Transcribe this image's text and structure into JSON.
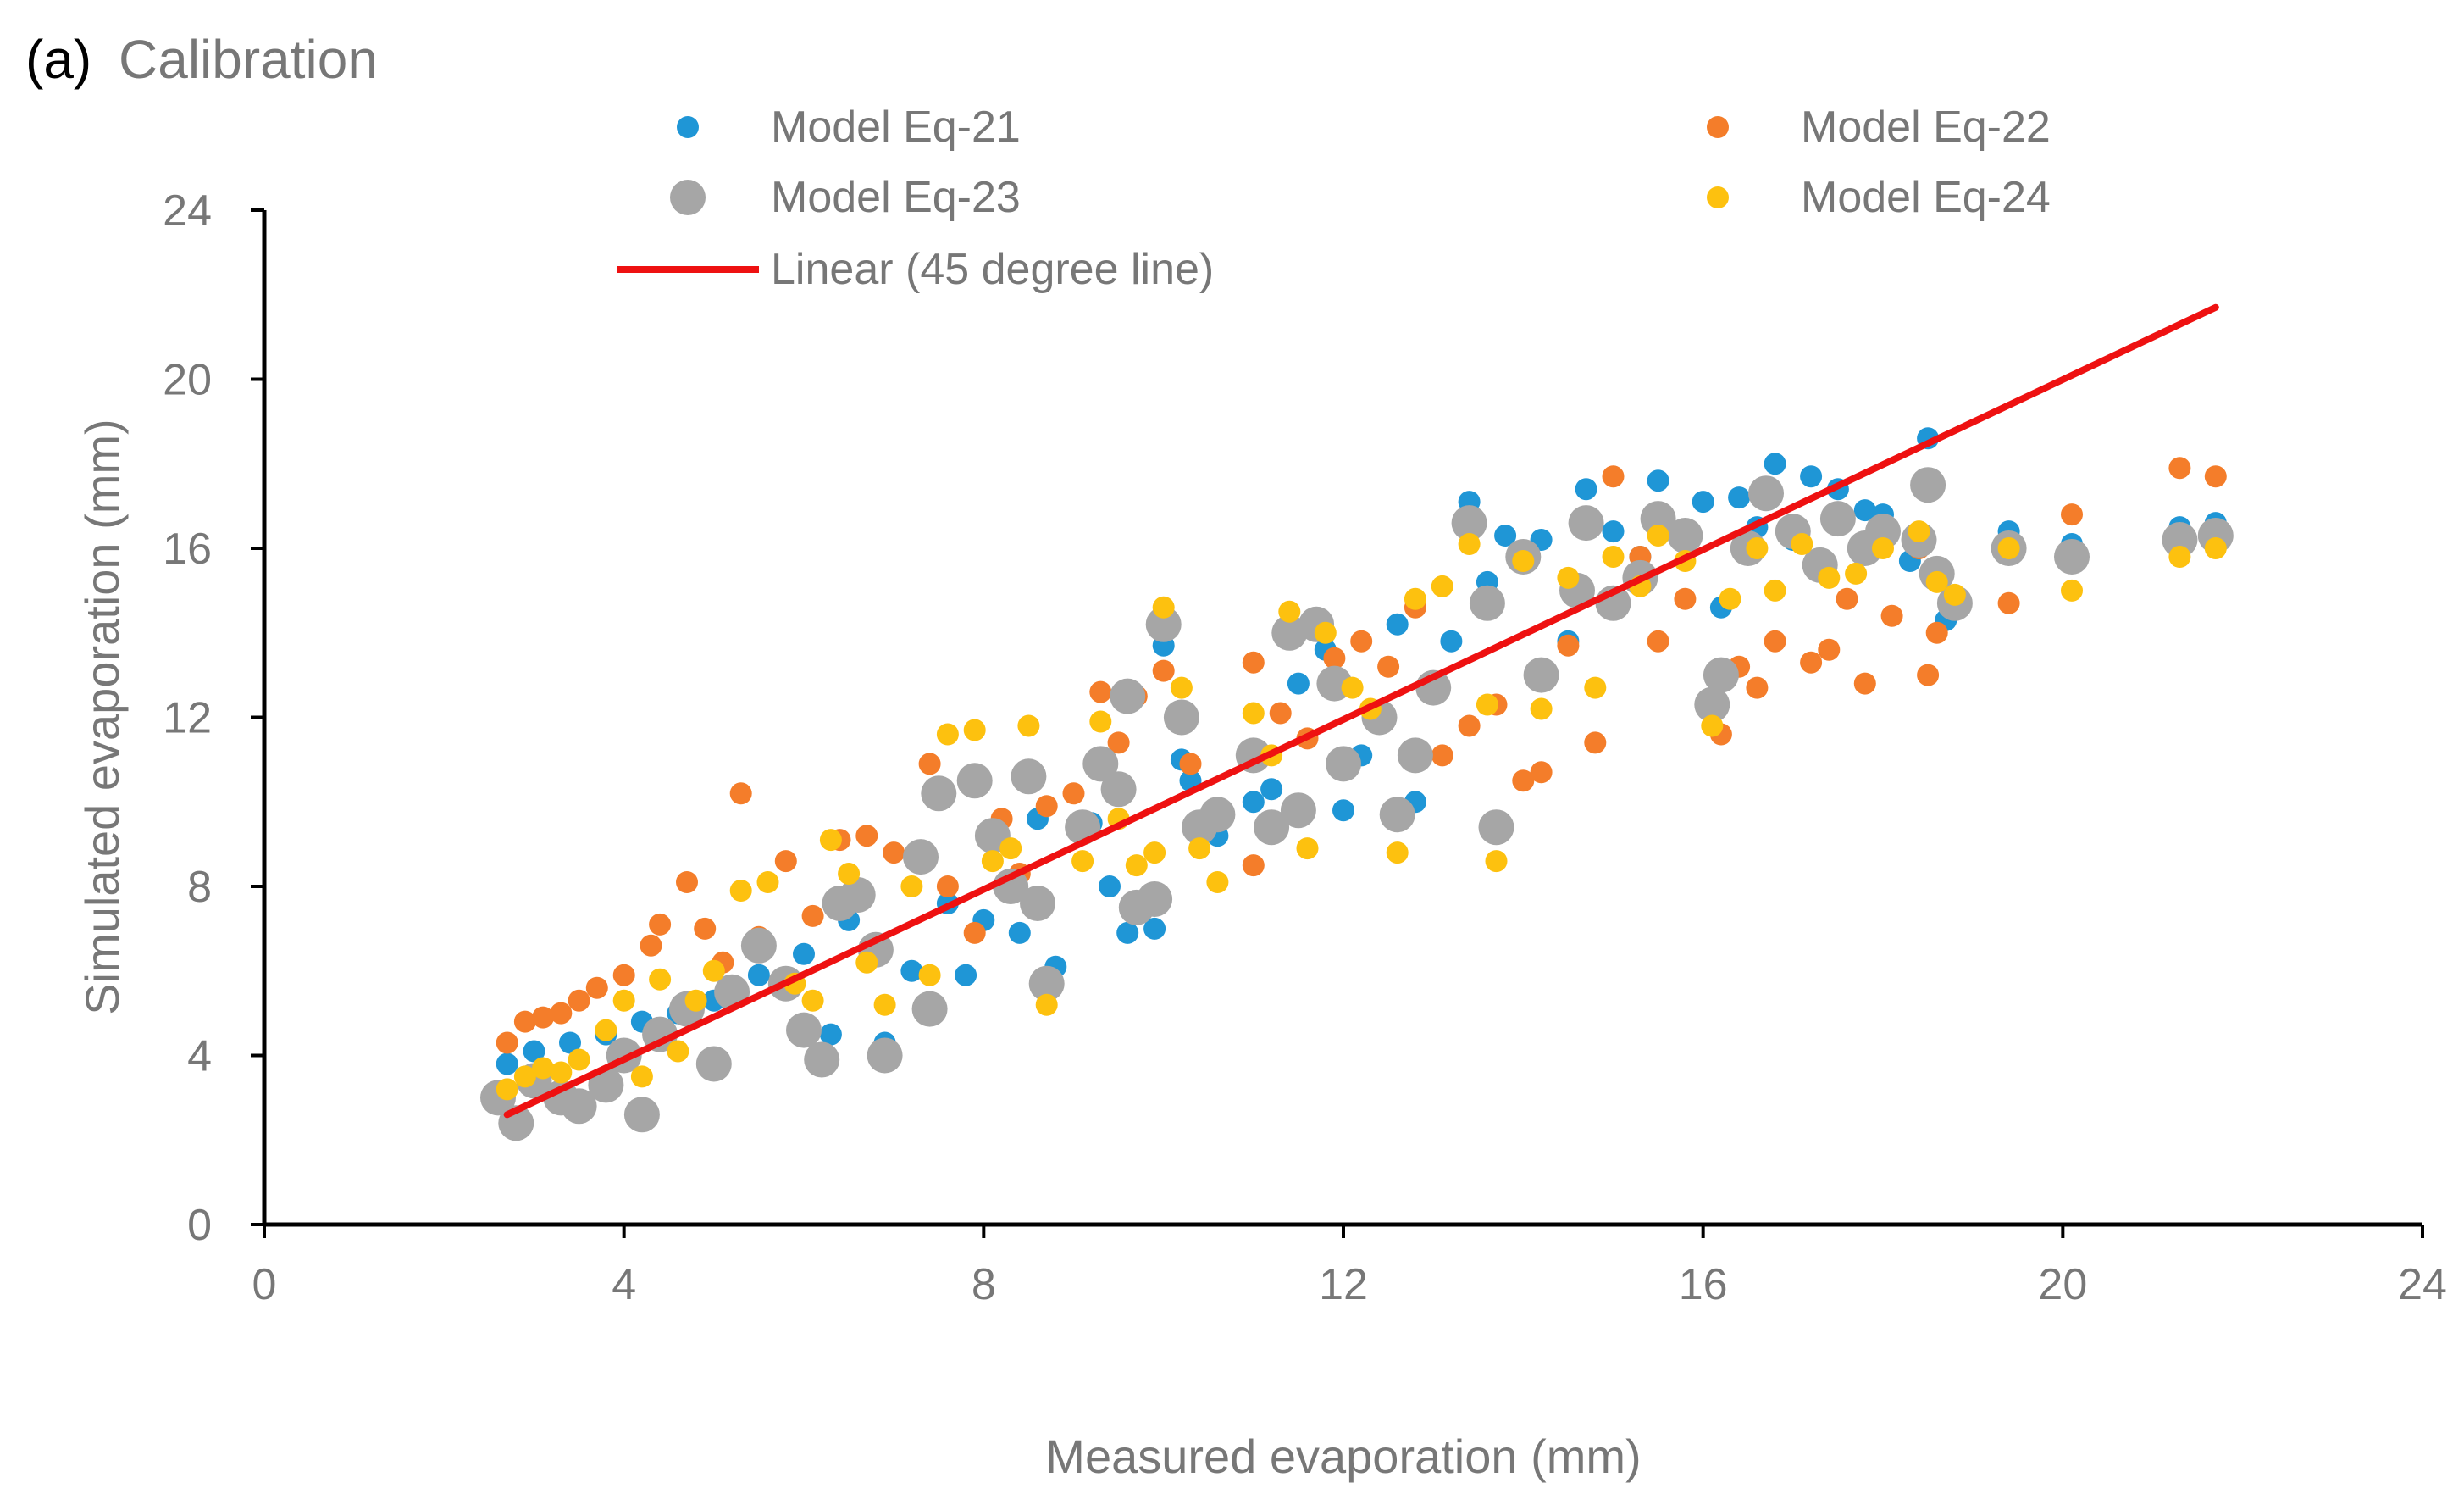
{
  "chart_data": {
    "type": "scatter",
    "panel_label": "(a)",
    "panel_title": "Calibration",
    "xlabel": "Measured evaporation (mm)",
    "ylabel": "Simulated evaporation (mm)",
    "xlim": [
      0,
      24
    ],
    "ylim": [
      0,
      24
    ],
    "xticks": [
      "0",
      "4",
      "8",
      "12",
      "16",
      "20",
      "24"
    ],
    "yticks": [
      "0",
      "4",
      "8",
      "12",
      "16",
      "20",
      "24"
    ],
    "grid": false,
    "legend_position": "top",
    "series": [
      {
        "name": "Model Eq-21",
        "color": "#1f96d6",
        "marker": "circle",
        "points": [
          [
            2.7,
            3.8
          ],
          [
            3.0,
            4.1
          ],
          [
            3.4,
            4.3
          ],
          [
            3.8,
            4.5
          ],
          [
            4.2,
            4.8
          ],
          [
            4.6,
            5.0
          ],
          [
            5.0,
            5.3
          ],
          [
            5.5,
            5.9
          ],
          [
            6.0,
            6.4
          ],
          [
            6.3,
            4.5
          ],
          [
            6.5,
            7.2
          ],
          [
            6.9,
            4.3
          ],
          [
            7.2,
            6.0
          ],
          [
            7.6,
            7.6
          ],
          [
            7.8,
            5.9
          ],
          [
            8.0,
            7.2
          ],
          [
            8.4,
            6.9
          ],
          [
            8.6,
            9.6
          ],
          [
            8.8,
            6.1
          ],
          [
            9.2,
            9.5
          ],
          [
            9.4,
            8.0
          ],
          [
            9.6,
            6.9
          ],
          [
            9.9,
            7.0
          ],
          [
            10.0,
            13.7
          ],
          [
            10.2,
            11.0
          ],
          [
            10.3,
            10.5
          ],
          [
            10.6,
            9.2
          ],
          [
            11.0,
            10.0
          ],
          [
            11.2,
            10.3
          ],
          [
            11.5,
            12.8
          ],
          [
            11.8,
            13.6
          ],
          [
            12.0,
            9.8
          ],
          [
            12.2,
            11.1
          ],
          [
            12.6,
            14.2
          ],
          [
            12.8,
            10.0
          ],
          [
            13.2,
            13.8
          ],
          [
            13.4,
            17.1
          ],
          [
            13.6,
            15.2
          ],
          [
            13.8,
            16.3
          ],
          [
            14.2,
            16.2
          ],
          [
            14.5,
            13.8
          ],
          [
            14.7,
            17.4
          ],
          [
            15.0,
            16.4
          ],
          [
            15.3,
            15.8
          ],
          [
            15.5,
            17.6
          ],
          [
            15.8,
            16.2
          ],
          [
            16.0,
            17.1
          ],
          [
            16.2,
            14.6
          ],
          [
            16.4,
            17.2
          ],
          [
            16.6,
            16.5
          ],
          [
            16.8,
            18.0
          ],
          [
            17.0,
            16.2
          ],
          [
            17.2,
            17.7
          ],
          [
            17.5,
            17.4
          ],
          [
            17.8,
            16.9
          ],
          [
            18.0,
            16.8
          ],
          [
            18.3,
            15.7
          ],
          [
            18.5,
            18.6
          ],
          [
            18.7,
            14.3
          ],
          [
            19.4,
            16.4
          ],
          [
            20.1,
            16.1
          ],
          [
            21.3,
            16.5
          ],
          [
            21.7,
            16.6
          ]
        ]
      },
      {
        "name": "Model Eq-22",
        "color": "#f47d2a",
        "marker": "circle",
        "points": [
          [
            2.7,
            4.3
          ],
          [
            2.9,
            4.8
          ],
          [
            3.1,
            4.9
          ],
          [
            3.3,
            5.0
          ],
          [
            3.5,
            5.3
          ],
          [
            3.7,
            5.6
          ],
          [
            4.0,
            5.9
          ],
          [
            4.3,
            6.6
          ],
          [
            4.4,
            7.1
          ],
          [
            4.7,
            8.1
          ],
          [
            4.9,
            7.0
          ],
          [
            5.1,
            6.2
          ],
          [
            5.3,
            10.2
          ],
          [
            5.5,
            6.8
          ],
          [
            5.8,
            8.6
          ],
          [
            6.1,
            7.3
          ],
          [
            6.4,
            9.1
          ],
          [
            6.7,
            9.2
          ],
          [
            7.0,
            8.8
          ],
          [
            7.4,
            10.9
          ],
          [
            7.6,
            8.0
          ],
          [
            7.9,
            6.9
          ],
          [
            8.2,
            9.6
          ],
          [
            8.4,
            8.3
          ],
          [
            8.7,
            9.9
          ],
          [
            9.0,
            10.2
          ],
          [
            9.3,
            12.6
          ],
          [
            9.5,
            11.4
          ],
          [
            9.7,
            12.5
          ],
          [
            10.0,
            13.1
          ],
          [
            10.3,
            10.9
          ],
          [
            10.6,
            9.6
          ],
          [
            11.0,
            13.3
          ],
          [
            11.0,
            8.5
          ],
          [
            11.3,
            12.1
          ],
          [
            11.6,
            11.5
          ],
          [
            11.9,
            13.4
          ],
          [
            12.2,
            13.8
          ],
          [
            12.5,
            13.2
          ],
          [
            12.8,
            14.6
          ],
          [
            13.1,
            11.1
          ],
          [
            13.4,
            11.8
          ],
          [
            13.7,
            12.3
          ],
          [
            14.0,
            10.5
          ],
          [
            14.2,
            10.7
          ],
          [
            14.5,
            13.7
          ],
          [
            14.8,
            11.4
          ],
          [
            15.0,
            17.7
          ],
          [
            15.3,
            15.8
          ],
          [
            15.5,
            13.8
          ],
          [
            15.8,
            14.8
          ],
          [
            16.2,
            11.6
          ],
          [
            16.4,
            13.2
          ],
          [
            16.6,
            12.7
          ],
          [
            16.8,
            13.8
          ],
          [
            17.2,
            13.3
          ],
          [
            17.4,
            13.6
          ],
          [
            17.6,
            14.8
          ],
          [
            17.8,
            12.8
          ],
          [
            18.1,
            14.4
          ],
          [
            18.4,
            16.0
          ],
          [
            18.5,
            13.0
          ],
          [
            18.6,
            14.0
          ],
          [
            19.4,
            14.7
          ],
          [
            20.1,
            16.8
          ],
          [
            21.3,
            17.9
          ],
          [
            21.7,
            17.7
          ]
        ]
      },
      {
        "name": "Model Eq-23",
        "color": "#a6a6a6",
        "marker": "circle",
        "points": [
          [
            2.6,
            3.0
          ],
          [
            2.8,
            2.4
          ],
          [
            3.0,
            3.4
          ],
          [
            3.3,
            3.0
          ],
          [
            3.5,
            2.8
          ],
          [
            3.8,
            3.3
          ],
          [
            4.0,
            4.0
          ],
          [
            4.2,
            2.6
          ],
          [
            4.4,
            4.5
          ],
          [
            4.7,
            5.1
          ],
          [
            5.0,
            3.8
          ],
          [
            5.2,
            5.5
          ],
          [
            5.5,
            6.6
          ],
          [
            5.8,
            5.7
          ],
          [
            6.0,
            4.6
          ],
          [
            6.2,
            3.9
          ],
          [
            6.4,
            7.6
          ],
          [
            6.6,
            7.8
          ],
          [
            6.8,
            6.5
          ],
          [
            6.9,
            4.0
          ],
          [
            7.3,
            8.7
          ],
          [
            7.4,
            5.1
          ],
          [
            7.5,
            10.2
          ],
          [
            7.9,
            10.5
          ],
          [
            8.1,
            9.2
          ],
          [
            8.3,
            8.0
          ],
          [
            8.5,
            10.6
          ],
          [
            8.6,
            7.6
          ],
          [
            8.7,
            5.7
          ],
          [
            9.1,
            9.4
          ],
          [
            9.3,
            10.9
          ],
          [
            9.5,
            10.3
          ],
          [
            9.6,
            12.5
          ],
          [
            9.7,
            7.5
          ],
          [
            9.9,
            7.7
          ],
          [
            10.0,
            14.2
          ],
          [
            10.2,
            12.0
          ],
          [
            10.4,
            9.4
          ],
          [
            10.6,
            9.7
          ],
          [
            11.0,
            11.1
          ],
          [
            11.2,
            9.4
          ],
          [
            11.4,
            14.0
          ],
          [
            11.5,
            9.8
          ],
          [
            11.7,
            14.2
          ],
          [
            11.9,
            12.8
          ],
          [
            12.0,
            10.9
          ],
          [
            12.4,
            12.0
          ],
          [
            12.6,
            9.7
          ],
          [
            12.8,
            11.1
          ],
          [
            13.0,
            12.7
          ],
          [
            13.4,
            16.6
          ],
          [
            13.6,
            14.7
          ],
          [
            13.7,
            9.4
          ],
          [
            14.0,
            15.8
          ],
          [
            14.2,
            13.0
          ],
          [
            14.6,
            15.0
          ],
          [
            14.7,
            16.6
          ],
          [
            15.0,
            14.7
          ],
          [
            15.3,
            15.3
          ],
          [
            15.5,
            16.7
          ],
          [
            15.8,
            16.3
          ],
          [
            16.1,
            12.3
          ],
          [
            16.2,
            13.0
          ],
          [
            16.5,
            16.0
          ],
          [
            16.7,
            17.3
          ],
          [
            17.0,
            16.4
          ],
          [
            17.3,
            15.6
          ],
          [
            17.5,
            16.7
          ],
          [
            17.8,
            16.0
          ],
          [
            18.0,
            16.4
          ],
          [
            18.4,
            16.2
          ],
          [
            18.5,
            17.5
          ],
          [
            18.6,
            15.4
          ],
          [
            18.8,
            14.7
          ],
          [
            19.4,
            16.0
          ],
          [
            20.1,
            15.8
          ],
          [
            21.3,
            16.2
          ],
          [
            21.7,
            16.3
          ]
        ]
      },
      {
        "name": "Model Eq-24",
        "color": "#fdc10f",
        "marker": "circle",
        "points": [
          [
            2.7,
            3.2
          ],
          [
            2.9,
            3.5
          ],
          [
            3.1,
            3.7
          ],
          [
            3.3,
            3.6
          ],
          [
            3.5,
            3.9
          ],
          [
            3.8,
            4.6
          ],
          [
            4.0,
            5.3
          ],
          [
            4.2,
            3.5
          ],
          [
            4.4,
            5.8
          ],
          [
            4.6,
            4.1
          ],
          [
            4.8,
            5.3
          ],
          [
            5.0,
            6.0
          ],
          [
            5.3,
            7.9
          ],
          [
            5.6,
            8.1
          ],
          [
            5.9,
            5.7
          ],
          [
            6.1,
            5.3
          ],
          [
            6.3,
            9.1
          ],
          [
            6.5,
            8.3
          ],
          [
            6.7,
            6.2
          ],
          [
            6.9,
            5.2
          ],
          [
            7.2,
            8.0
          ],
          [
            7.4,
            5.9
          ],
          [
            7.6,
            11.6
          ],
          [
            7.9,
            11.7
          ],
          [
            8.1,
            8.6
          ],
          [
            8.3,
            8.9
          ],
          [
            8.5,
            11.8
          ],
          [
            8.7,
            5.2
          ],
          [
            9.1,
            8.6
          ],
          [
            9.3,
            11.9
          ],
          [
            9.5,
            9.6
          ],
          [
            9.7,
            8.5
          ],
          [
            9.9,
            8.8
          ],
          [
            10.0,
            14.6
          ],
          [
            10.2,
            12.7
          ],
          [
            10.4,
            8.9
          ],
          [
            10.6,
            8.1
          ],
          [
            11.0,
            12.1
          ],
          [
            11.2,
            11.1
          ],
          [
            11.4,
            14.5
          ],
          [
            11.6,
            8.9
          ],
          [
            11.8,
            14.0
          ],
          [
            12.1,
            12.7
          ],
          [
            12.3,
            12.2
          ],
          [
            12.6,
            8.8
          ],
          [
            12.8,
            14.8
          ],
          [
            13.1,
            15.1
          ],
          [
            13.4,
            16.1
          ],
          [
            13.6,
            12.3
          ],
          [
            13.7,
            8.6
          ],
          [
            14.0,
            15.7
          ],
          [
            14.2,
            12.2
          ],
          [
            14.5,
            15.3
          ],
          [
            14.8,
            12.7
          ],
          [
            15.0,
            15.8
          ],
          [
            15.3,
            15.1
          ],
          [
            15.5,
            16.3
          ],
          [
            15.8,
            15.7
          ],
          [
            16.1,
            11.8
          ],
          [
            16.3,
            14.8
          ],
          [
            16.6,
            16.0
          ],
          [
            16.8,
            15.0
          ],
          [
            17.1,
            16.1
          ],
          [
            17.4,
            15.3
          ],
          [
            17.7,
            15.4
          ],
          [
            18.0,
            16.0
          ],
          [
            18.4,
            16.4
          ],
          [
            18.6,
            15.2
          ],
          [
            18.8,
            14.9
          ],
          [
            19.4,
            16.0
          ],
          [
            20.1,
            15.0
          ],
          [
            21.3,
            15.8
          ],
          [
            21.7,
            16.0
          ]
        ]
      }
    ],
    "reference_line": {
      "name": "Linear (45 degree line)",
      "color": "#ee1111",
      "points": [
        [
          2.7,
          2.6
        ],
        [
          21.7,
          21.7
        ]
      ]
    }
  }
}
